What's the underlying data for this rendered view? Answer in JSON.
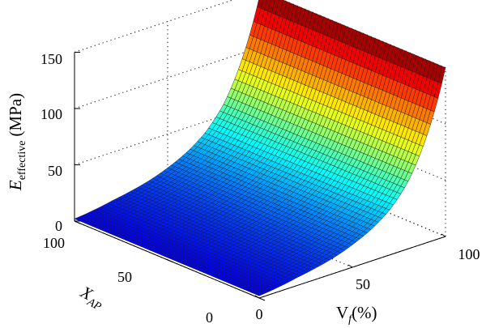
{
  "chart_data": {
    "type": "surface3d",
    "x_axis": {
      "label": "V",
      "label_sub": "f",
      "label_unit": "(%)",
      "range": [
        0,
        100
      ],
      "ticks": [
        "0",
        "50",
        "100"
      ]
    },
    "y_axis": {
      "label": "X",
      "label_sub": "AP",
      "range": [
        0,
        100
      ],
      "ticks": [
        "0",
        "50",
        "100"
      ]
    },
    "z_axis": {
      "label": "E",
      "label_sub": "effective",
      "label_unit": "(MPa)",
      "range": [
        0,
        150
      ],
      "ticks": [
        "0",
        "50",
        "100",
        "150"
      ]
    },
    "surface": {
      "vf": [
        0,
        10,
        20,
        30,
        40,
        50,
        60,
        70,
        80,
        90,
        100
      ],
      "xap": [
        0,
        10,
        20,
        30,
        40,
        50,
        60,
        70,
        80,
        90,
        100
      ],
      "e_at_vf": [
        2,
        4,
        7,
        10,
        14,
        20,
        28,
        40,
        60,
        95,
        150
      ],
      "e_varies_with_xap": false
    },
    "grid": true,
    "colormap": "jet"
  }
}
